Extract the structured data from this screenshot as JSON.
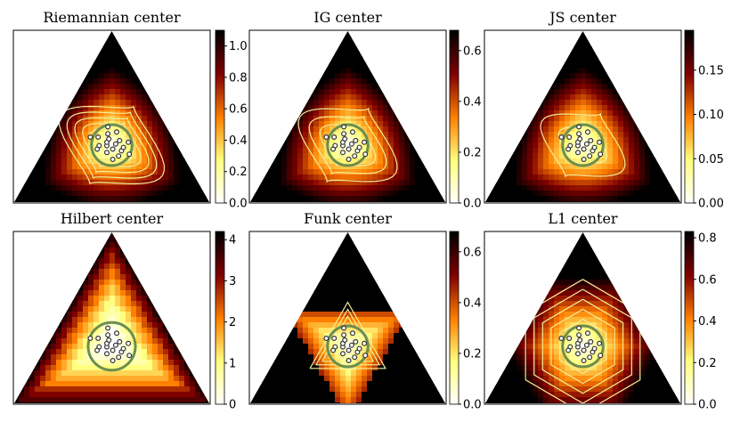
{
  "figure": {
    "panels": [
      {
        "title": "Riemannian center"
      },
      {
        "title": "IG center"
      },
      {
        "title": "JS center"
      },
      {
        "title": "Hilbert center"
      },
      {
        "title": "Funk center"
      },
      {
        "title": "L1 center"
      }
    ]
  },
  "chart_data": [
    {
      "type": "heatmap",
      "title": "Riemannian center",
      "colormap": "afmhot_r",
      "colorbar": {
        "range": [
          0,
          1.1
        ],
        "ticks": [
          "0.0",
          "0.2",
          "0.4",
          "0.6",
          "0.8",
          "1.0"
        ]
      },
      "field_shape": "rounded",
      "contour_levels": 6,
      "center_boundary_color": "#6b8e4e",
      "points": [
        [
          0.33,
          0.36
        ],
        [
          0.31,
          0.34
        ],
        [
          0.35,
          0.35
        ],
        [
          0.34,
          0.31
        ],
        [
          0.37,
          0.33
        ],
        [
          0.3,
          0.3
        ],
        [
          0.32,
          0.28
        ],
        [
          0.36,
          0.28
        ],
        [
          0.29,
          0.38
        ],
        [
          0.38,
          0.38
        ],
        [
          0.33,
          0.4
        ],
        [
          0.4,
          0.32
        ],
        [
          0.27,
          0.33
        ],
        [
          0.35,
          0.24
        ],
        [
          0.28,
          0.27
        ],
        [
          0.41,
          0.27
        ],
        [
          0.31,
          0.42
        ],
        [
          0.38,
          0.42
        ],
        [
          0.25,
          0.37
        ],
        [
          0.44,
          0.3
        ]
      ]
    },
    {
      "type": "heatmap",
      "title": "IG center",
      "colormap": "afmhot_r",
      "colorbar": {
        "range": [
          0,
          0.68
        ],
        "ticks": [
          "0.0",
          "0.2",
          "0.4",
          "0.6"
        ]
      },
      "field_shape": "rounded",
      "contour_levels": 4,
      "center_boundary_color": "#6b8e4e",
      "points": [
        [
          0.33,
          0.36
        ],
        [
          0.31,
          0.34
        ],
        [
          0.35,
          0.35
        ],
        [
          0.34,
          0.31
        ],
        [
          0.37,
          0.33
        ],
        [
          0.3,
          0.3
        ],
        [
          0.32,
          0.28
        ],
        [
          0.36,
          0.28
        ],
        [
          0.29,
          0.38
        ],
        [
          0.38,
          0.38
        ],
        [
          0.33,
          0.4
        ],
        [
          0.4,
          0.32
        ],
        [
          0.27,
          0.33
        ],
        [
          0.35,
          0.24
        ],
        [
          0.28,
          0.27
        ],
        [
          0.41,
          0.27
        ],
        [
          0.31,
          0.42
        ],
        [
          0.38,
          0.42
        ],
        [
          0.25,
          0.37
        ],
        [
          0.44,
          0.3
        ]
      ]
    },
    {
      "type": "heatmap",
      "title": "JS center",
      "colormap": "afmhot_r",
      "colorbar": {
        "range": [
          0,
          0.195
        ],
        "ticks": [
          "0.00",
          "0.05",
          "0.10",
          "0.15"
        ]
      },
      "field_shape": "rounded",
      "contour_levels": 2,
      "center_boundary_color": "#6b8e4e",
      "points": [
        [
          0.33,
          0.36
        ],
        [
          0.31,
          0.34
        ],
        [
          0.35,
          0.35
        ],
        [
          0.34,
          0.31
        ],
        [
          0.37,
          0.33
        ],
        [
          0.3,
          0.3
        ],
        [
          0.32,
          0.28
        ],
        [
          0.36,
          0.28
        ],
        [
          0.29,
          0.38
        ],
        [
          0.38,
          0.38
        ],
        [
          0.33,
          0.4
        ],
        [
          0.4,
          0.32
        ],
        [
          0.27,
          0.33
        ],
        [
          0.35,
          0.24
        ],
        [
          0.28,
          0.27
        ],
        [
          0.41,
          0.27
        ],
        [
          0.31,
          0.42
        ],
        [
          0.38,
          0.42
        ],
        [
          0.25,
          0.37
        ],
        [
          0.44,
          0.3
        ]
      ]
    },
    {
      "type": "heatmap",
      "title": "Hilbert center",
      "colormap": "afmhot_r",
      "colorbar": {
        "range": [
          0,
          4.2
        ],
        "ticks": [
          "0",
          "1",
          "2",
          "3",
          "4"
        ]
      },
      "field_shape": "polygonal",
      "contour_levels": 0,
      "center_boundary_color": "#6b8e4e",
      "points": [
        [
          0.33,
          0.36
        ],
        [
          0.31,
          0.34
        ],
        [
          0.35,
          0.35
        ],
        [
          0.34,
          0.31
        ],
        [
          0.37,
          0.33
        ],
        [
          0.3,
          0.3
        ],
        [
          0.32,
          0.28
        ],
        [
          0.36,
          0.28
        ],
        [
          0.29,
          0.38
        ],
        [
          0.38,
          0.38
        ],
        [
          0.33,
          0.4
        ],
        [
          0.4,
          0.32
        ],
        [
          0.27,
          0.33
        ],
        [
          0.35,
          0.24
        ],
        [
          0.28,
          0.27
        ],
        [
          0.41,
          0.27
        ],
        [
          0.31,
          0.42
        ],
        [
          0.38,
          0.42
        ],
        [
          0.25,
          0.37
        ],
        [
          0.44,
          0.3
        ]
      ]
    },
    {
      "type": "heatmap",
      "title": "Funk center",
      "colormap": "afmhot_r",
      "colorbar": {
        "range": [
          0,
          0.68
        ],
        "ticks": [
          "0.0",
          "0.2",
          "0.4",
          "0.6"
        ]
      },
      "field_shape": "inverted-triangle",
      "contour_levels": 5,
      "center_boundary_color": "#6b8e4e",
      "points": [
        [
          0.33,
          0.36
        ],
        [
          0.31,
          0.34
        ],
        [
          0.35,
          0.35
        ],
        [
          0.34,
          0.31
        ],
        [
          0.37,
          0.33
        ],
        [
          0.3,
          0.3
        ],
        [
          0.32,
          0.28
        ],
        [
          0.36,
          0.28
        ],
        [
          0.29,
          0.38
        ],
        [
          0.38,
          0.38
        ],
        [
          0.33,
          0.4
        ],
        [
          0.4,
          0.32
        ],
        [
          0.27,
          0.33
        ],
        [
          0.35,
          0.24
        ],
        [
          0.28,
          0.27
        ],
        [
          0.41,
          0.27
        ],
        [
          0.31,
          0.42
        ],
        [
          0.38,
          0.42
        ],
        [
          0.25,
          0.37
        ],
        [
          0.44,
          0.3
        ]
      ]
    },
    {
      "type": "heatmap",
      "title": "L1 center",
      "colormap": "afmhot_r",
      "colorbar": {
        "range": [
          0,
          0.83
        ],
        "ticks": [
          "0.0",
          "0.2",
          "0.4",
          "0.6",
          "0.8"
        ]
      },
      "field_shape": "hexagonal",
      "contour_levels": 5,
      "center_boundary_color": "#6b8e4e",
      "points": [
        [
          0.33,
          0.36
        ],
        [
          0.31,
          0.34
        ],
        [
          0.35,
          0.35
        ],
        [
          0.34,
          0.31
        ],
        [
          0.37,
          0.33
        ],
        [
          0.3,
          0.3
        ],
        [
          0.32,
          0.28
        ],
        [
          0.36,
          0.28
        ],
        [
          0.29,
          0.38
        ],
        [
          0.38,
          0.38
        ],
        [
          0.33,
          0.4
        ],
        [
          0.4,
          0.32
        ],
        [
          0.27,
          0.33
        ],
        [
          0.35,
          0.24
        ],
        [
          0.28,
          0.27
        ],
        [
          0.41,
          0.27
        ],
        [
          0.31,
          0.42
        ],
        [
          0.38,
          0.42
        ],
        [
          0.25,
          0.37
        ],
        [
          0.44,
          0.3
        ]
      ]
    }
  ]
}
